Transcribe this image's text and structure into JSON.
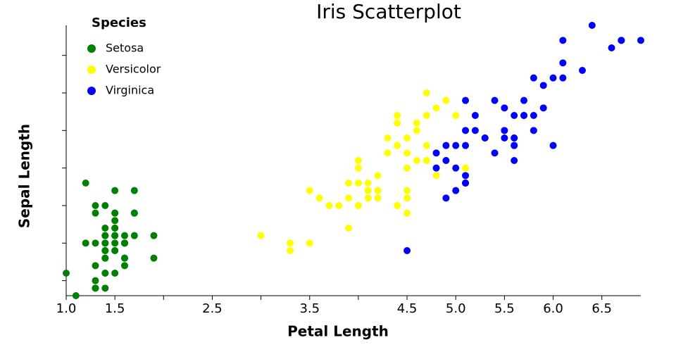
{
  "chart_data": {
    "type": "scatter",
    "title": "Iris Scatterplot",
    "x_label": "Petal Length",
    "y_label": "Sepal Length",
    "legend_title": "Species",
    "legend": "upper left",
    "xlim": [
      1.0,
      6.9
    ],
    "ylim": [
      4.3,
      7.9
    ],
    "xticks": [
      {
        "value": 1,
        "label": "1.0"
      },
      1.5,
      {
        "value": 2,
        "label": null
      },
      2.5,
      {
        "value": 3,
        "label": null
      },
      3.5,
      {
        "value": 4,
        "label": null
      },
      4.5,
      {
        "value": 5,
        "label": "5.0"
      },
      5.5,
      {
        "value": 6,
        "label": "6.0"
      },
      6.5
    ],
    "yticks": [
      {
        "value": 4.5,
        "label": null
      },
      {
        "value": 5,
        "label": null
      },
      {
        "value": 5.5,
        "label": null
      },
      {
        "value": 6,
        "label": null
      },
      {
        "value": 6.5,
        "label": null
      },
      {
        "value": 7,
        "label": null
      },
      {
        "value": 7.5,
        "label": null
      }
    ],
    "series": [
      {
        "name": "Setosa",
        "color": "#008000",
        "x": [
          1.4,
          1.4,
          1.3,
          1.5,
          1.4,
          1.7,
          1.4,
          1.5,
          1.4,
          1.5,
          1.5,
          1.6,
          1.4,
          1.1,
          1.2,
          1.5,
          1.3,
          1.4,
          1.7,
          1.5,
          1.7,
          1.5,
          1.0,
          1.7,
          1.9,
          1.6,
          1.6,
          1.5,
          1.4,
          1.6,
          1.6,
          1.5,
          1.5,
          1.4,
          1.5,
          1.2,
          1.3,
          1.4,
          1.3,
          1.5,
          1.3,
          1.3,
          1.3,
          1.6,
          1.9,
          1.4,
          1.6,
          1.4,
          1.5,
          1.4
        ],
        "values": [
          5.1,
          4.9,
          4.7,
          4.6,
          5.0,
          5.4,
          4.6,
          5.0,
          4.4,
          4.9,
          5.4,
          4.8,
          4.8,
          4.3,
          5.8,
          5.7,
          5.4,
          5.1,
          5.7,
          5.1,
          5.4,
          5.1,
          4.6,
          5.1,
          4.8,
          5.0,
          5.0,
          5.2,
          5.2,
          4.7,
          4.8,
          5.4,
          5.2,
          5.5,
          4.9,
          5.0,
          5.5,
          4.9,
          4.4,
          5.1,
          5.0,
          4.5,
          4.4,
          5.0,
          5.1,
          4.8,
          5.1,
          4.6,
          5.3,
          5.0
        ]
      },
      {
        "name": "Versicolor",
        "color": "#ffff00",
        "x": [
          4.7,
          4.5,
          4.9,
          4.0,
          4.6,
          4.5,
          4.7,
          3.3,
          4.6,
          3.9,
          3.5,
          4.2,
          4.0,
          4.7,
          3.6,
          4.4,
          4.5,
          4.1,
          4.5,
          3.9,
          4.8,
          4.0,
          4.9,
          4.7,
          4.3,
          4.4,
          4.8,
          5.0,
          4.5,
          3.5,
          3.8,
          3.7,
          3.9,
          5.1,
          4.5,
          4.5,
          4.7,
          4.4,
          4.1,
          4.0,
          4.4,
          4.6,
          4.0,
          3.3,
          4.2,
          4.2,
          4.2,
          4.3,
          3.0,
          4.1
        ],
        "values": [
          7.0,
          6.4,
          6.9,
          5.5,
          6.5,
          5.7,
          6.3,
          4.9,
          6.6,
          5.2,
          5.0,
          5.9,
          6.0,
          6.1,
          5.6,
          6.7,
          5.6,
          5.8,
          6.2,
          5.6,
          5.9,
          6.1,
          6.3,
          6.1,
          6.4,
          6.6,
          6.8,
          6.7,
          6.0,
          5.7,
          5.5,
          5.5,
          5.8,
          6.0,
          5.4,
          6.0,
          6.7,
          6.3,
          5.6,
          5.5,
          5.5,
          6.1,
          5.8,
          5.0,
          5.6,
          5.7,
          5.7,
          6.2,
          5.1,
          5.7
        ]
      },
      {
        "name": "Virginica",
        "color": "#0000ff",
        "x": [
          6.0,
          5.1,
          5.9,
          5.6,
          5.8,
          6.6,
          4.5,
          6.3,
          5.8,
          6.1,
          5.1,
          5.3,
          5.5,
          5.0,
          5.1,
          5.3,
          5.5,
          6.7,
          6.9,
          5.0,
          5.7,
          4.9,
          6.7,
          4.9,
          5.7,
          6.0,
          4.8,
          4.9,
          5.6,
          5.8,
          6.1,
          6.4,
          5.6,
          5.1,
          5.6,
          6.1,
          5.6,
          5.5,
          4.8,
          5.4,
          5.6,
          5.1,
          5.1,
          5.9,
          5.7,
          5.2,
          5.0,
          5.2,
          5.4,
          5.1
        ],
        "values": [
          6.3,
          5.8,
          7.1,
          6.3,
          6.5,
          7.6,
          4.9,
          7.3,
          6.7,
          7.2,
          6.5,
          6.4,
          6.8,
          5.7,
          5.8,
          6.4,
          6.5,
          7.7,
          7.7,
          6.0,
          6.9,
          5.6,
          7.7,
          6.3,
          6.7,
          7.2,
          6.2,
          6.1,
          6.4,
          7.2,
          7.4,
          7.9,
          6.4,
          6.3,
          6.1,
          7.7,
          6.3,
          6.4,
          6.0,
          6.9,
          6.7,
          6.9,
          5.8,
          6.8,
          6.7,
          6.7,
          6.3,
          6.5,
          6.2,
          5.9
        ]
      }
    ]
  }
}
